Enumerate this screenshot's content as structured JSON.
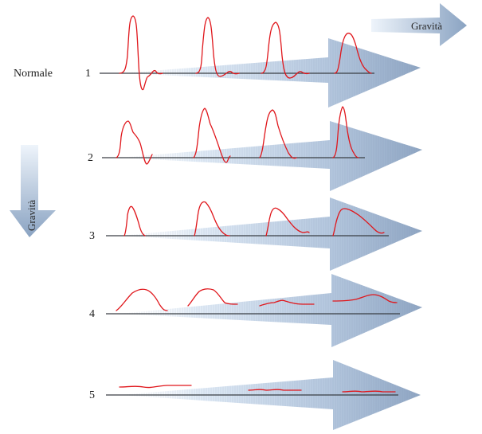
{
  "labels": {
    "normal": "Normale",
    "gravity_top": "Gravità",
    "gravity_left": "Gravità"
  },
  "rows": [
    {
      "number": "1"
    },
    {
      "number": "2"
    },
    {
      "number": "3"
    },
    {
      "number": "4"
    },
    {
      "number": "5"
    }
  ],
  "colors": {
    "wave": "#e0161b",
    "baseline": "#3a3f44",
    "arrow_light": "#dce9f5",
    "arrow_dark": "#8fa6c3"
  }
}
